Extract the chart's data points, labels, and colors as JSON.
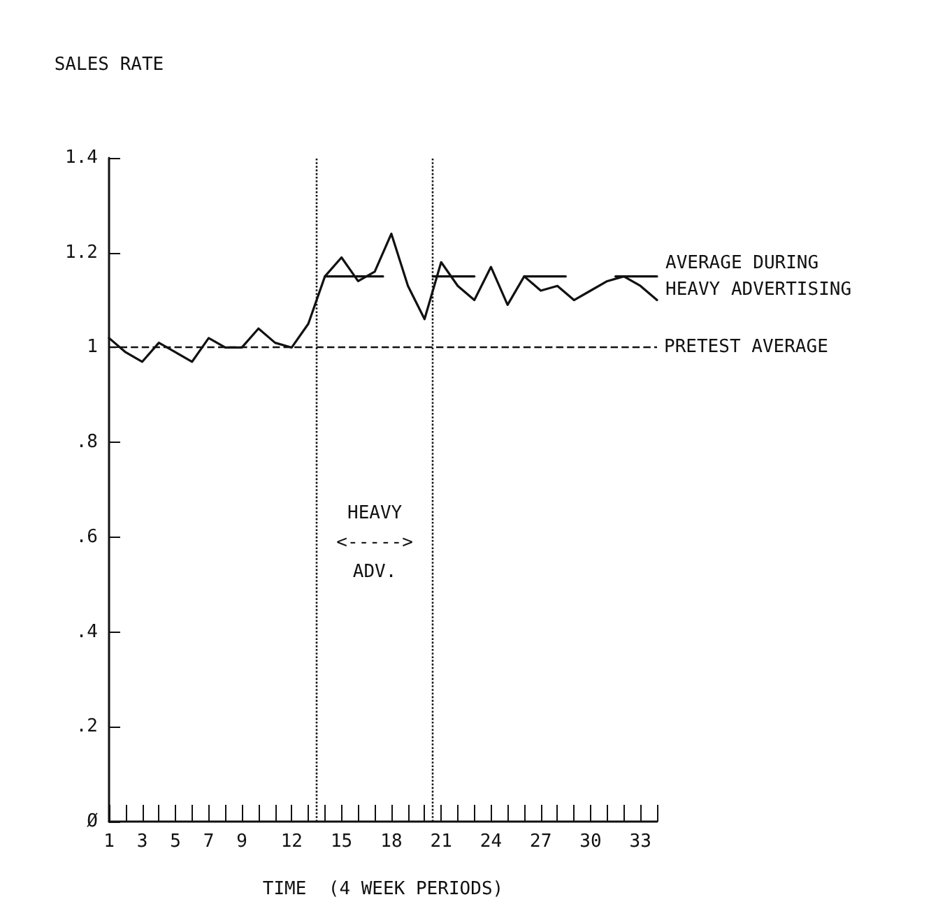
{
  "chart_data": {
    "type": "line",
    "ylabel": "SALES RATE",
    "xlabel": "TIME  (4 WEEK PERIODS)",
    "xlim": [
      1,
      34
    ],
    "xticks": [
      1,
      {
        "value": 2,
        "label": null
      },
      3,
      {
        "value": 4,
        "label": null
      },
      5,
      {
        "value": 6,
        "label": null
      },
      7,
      {
        "value": 8,
        "label": null
      },
      9,
      {
        "value": 10,
        "label": null
      },
      {
        "value": 11,
        "label": null
      },
      12,
      {
        "value": 13,
        "label": null
      },
      {
        "value": 14,
        "label": null
      },
      15,
      {
        "value": 16,
        "label": null
      },
      {
        "value": 17,
        "label": null
      },
      18,
      {
        "value": 19,
        "label": null
      },
      {
        "value": 20,
        "label": null
      },
      21,
      {
        "value": 22,
        "label": null
      },
      {
        "value": 23,
        "label": null
      },
      24,
      {
        "value": 25,
        "label": null
      },
      {
        "value": 26,
        "label": null
      },
      27,
      {
        "value": 28,
        "label": null
      },
      {
        "value": 29,
        "label": null
      },
      30,
      {
        "value": 31,
        "label": null
      },
      {
        "value": 32,
        "label": null
      },
      33,
      {
        "value": 34,
        "label": null
      }
    ],
    "ylim": [
      0,
      1.4
    ],
    "yticks": [
      {
        "value": 0,
        "label": "Ø"
      },
      {
        "value": 0.2,
        "label": ".2"
      },
      {
        "value": 0.4,
        "label": ".4"
      },
      {
        "value": 0.6,
        "label": ".6"
      },
      {
        "value": 0.8,
        "label": ".8"
      },
      1,
      1.2,
      1.4
    ],
    "x": [
      1,
      2,
      3,
      4,
      5,
      6,
      7,
      8,
      9,
      10,
      11,
      12,
      13,
      14,
      15,
      16,
      17,
      18,
      19,
      20,
      21,
      22,
      23,
      24,
      25,
      26,
      27,
      28,
      29,
      30,
      31,
      32,
      33,
      34
    ],
    "series": [
      {
        "color": "#111111",
        "values": [
          1.02,
          0.99,
          0.97,
          1.01,
          0.99,
          0.97,
          1.02,
          1.0,
          1.0,
          1.04,
          1.01,
          1.0,
          1.05,
          1.15,
          1.19,
          1.14,
          1.16,
          1.24,
          1.13,
          1.06,
          1.18,
          1.13,
          1.1,
          1.17,
          1.09,
          1.15,
          1.12,
          1.13,
          1.1,
          1.12,
          1.14,
          1.15,
          1.13,
          1.1
        ]
      },
      {
        "name": "AVERAGE DURING\nHEAVY ADVERTISING",
        "color": "#111111",
        "x": [
          14,
          17.5,
          19,
          20.5,
          23,
          24.5,
          26,
          28.5,
          30,
          31.5,
          34
        ],
        "values": [
          1.15,
          1.15,
          null,
          1.15,
          1.15,
          null,
          1.15,
          1.15,
          null,
          1.15,
          1.15
        ]
      }
    ],
    "ref_lines": [
      {
        "axis": "y",
        "value": 1,
        "label": "PRETEST AVERAGE",
        "line_style": "dashed",
        "color": "#111111"
      },
      {
        "axis": "x",
        "value": 13.5,
        "label": null,
        "line_style": "dotted",
        "color": "#111111"
      },
      {
        "axis": "x",
        "value": 20.5,
        "label": null,
        "line_style": "dotted",
        "color": "#111111"
      }
    ],
    "annotations": [
      "HEAVY\n<----->\nADV."
    ],
    "grid": false,
    "legend": false
  }
}
